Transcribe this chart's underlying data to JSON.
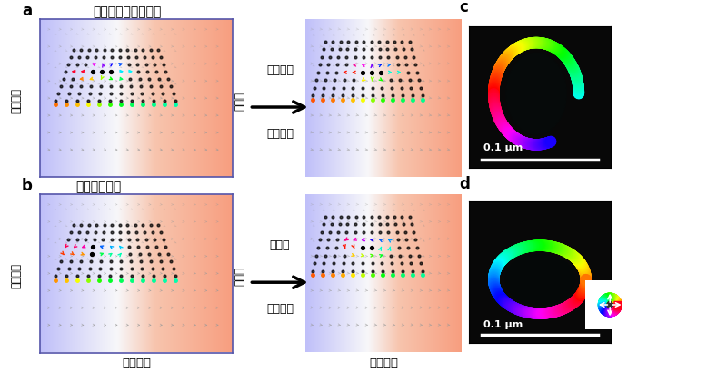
{
  "panel_labels": [
    "a",
    "b",
    "c",
    "d"
  ],
  "label_a_title": "アンチスキルミオン",
  "label_b_title": "スキルミオン",
  "label_cold": "コールド",
  "label_hot": "ホット",
  "label_a_arrow_top": "磁場印加",
  "label_a_arrow_bot": "温度勧配",
  "label_b_arrow_top": "零磁場",
  "label_b_arrow_bot": "温度勧配",
  "label_initial": "初期状態",
  "label_final": "最終状態",
  "label_scale": "0.1 μm"
}
